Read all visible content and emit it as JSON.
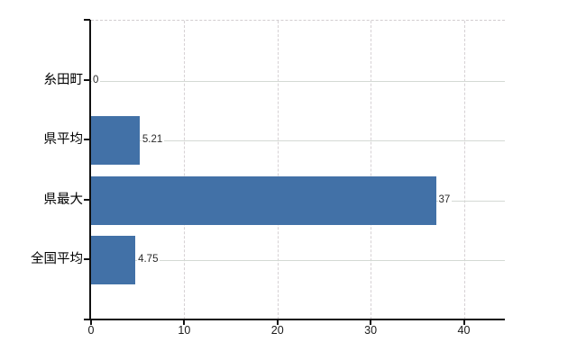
{
  "chart_data": {
    "type": "bar",
    "orientation": "horizontal",
    "title": "",
    "xlabel": "",
    "ylabel": "",
    "categories": [
      "糸田町",
      "県平均",
      "県最大",
      "全国平均"
    ],
    "values": [
      0,
      5.21,
      37,
      4.75
    ],
    "value_labels": [
      "0",
      "5.21",
      "37",
      "4.75"
    ],
    "xlim": [
      0,
      44.4
    ],
    "x_ticks": [
      0,
      10,
      20,
      30,
      40
    ],
    "x_tick_labels": [
      "0",
      "10",
      "20",
      "30",
      "40"
    ],
    "grid": {
      "vertical": "dashed",
      "horizontal": "solid",
      "top_border": "dashed",
      "visible": true
    },
    "legend_position": "none",
    "colors": {
      "bar": "#4271a7",
      "grid_vertical": "#d6d1d4",
      "grid_horizontal": "#d4d9d4",
      "axis": "#111111",
      "category_label": "#000000",
      "value_label": "#2b2b2b",
      "tick_label": "#1a1a1a",
      "background": "#ffffff"
    }
  }
}
